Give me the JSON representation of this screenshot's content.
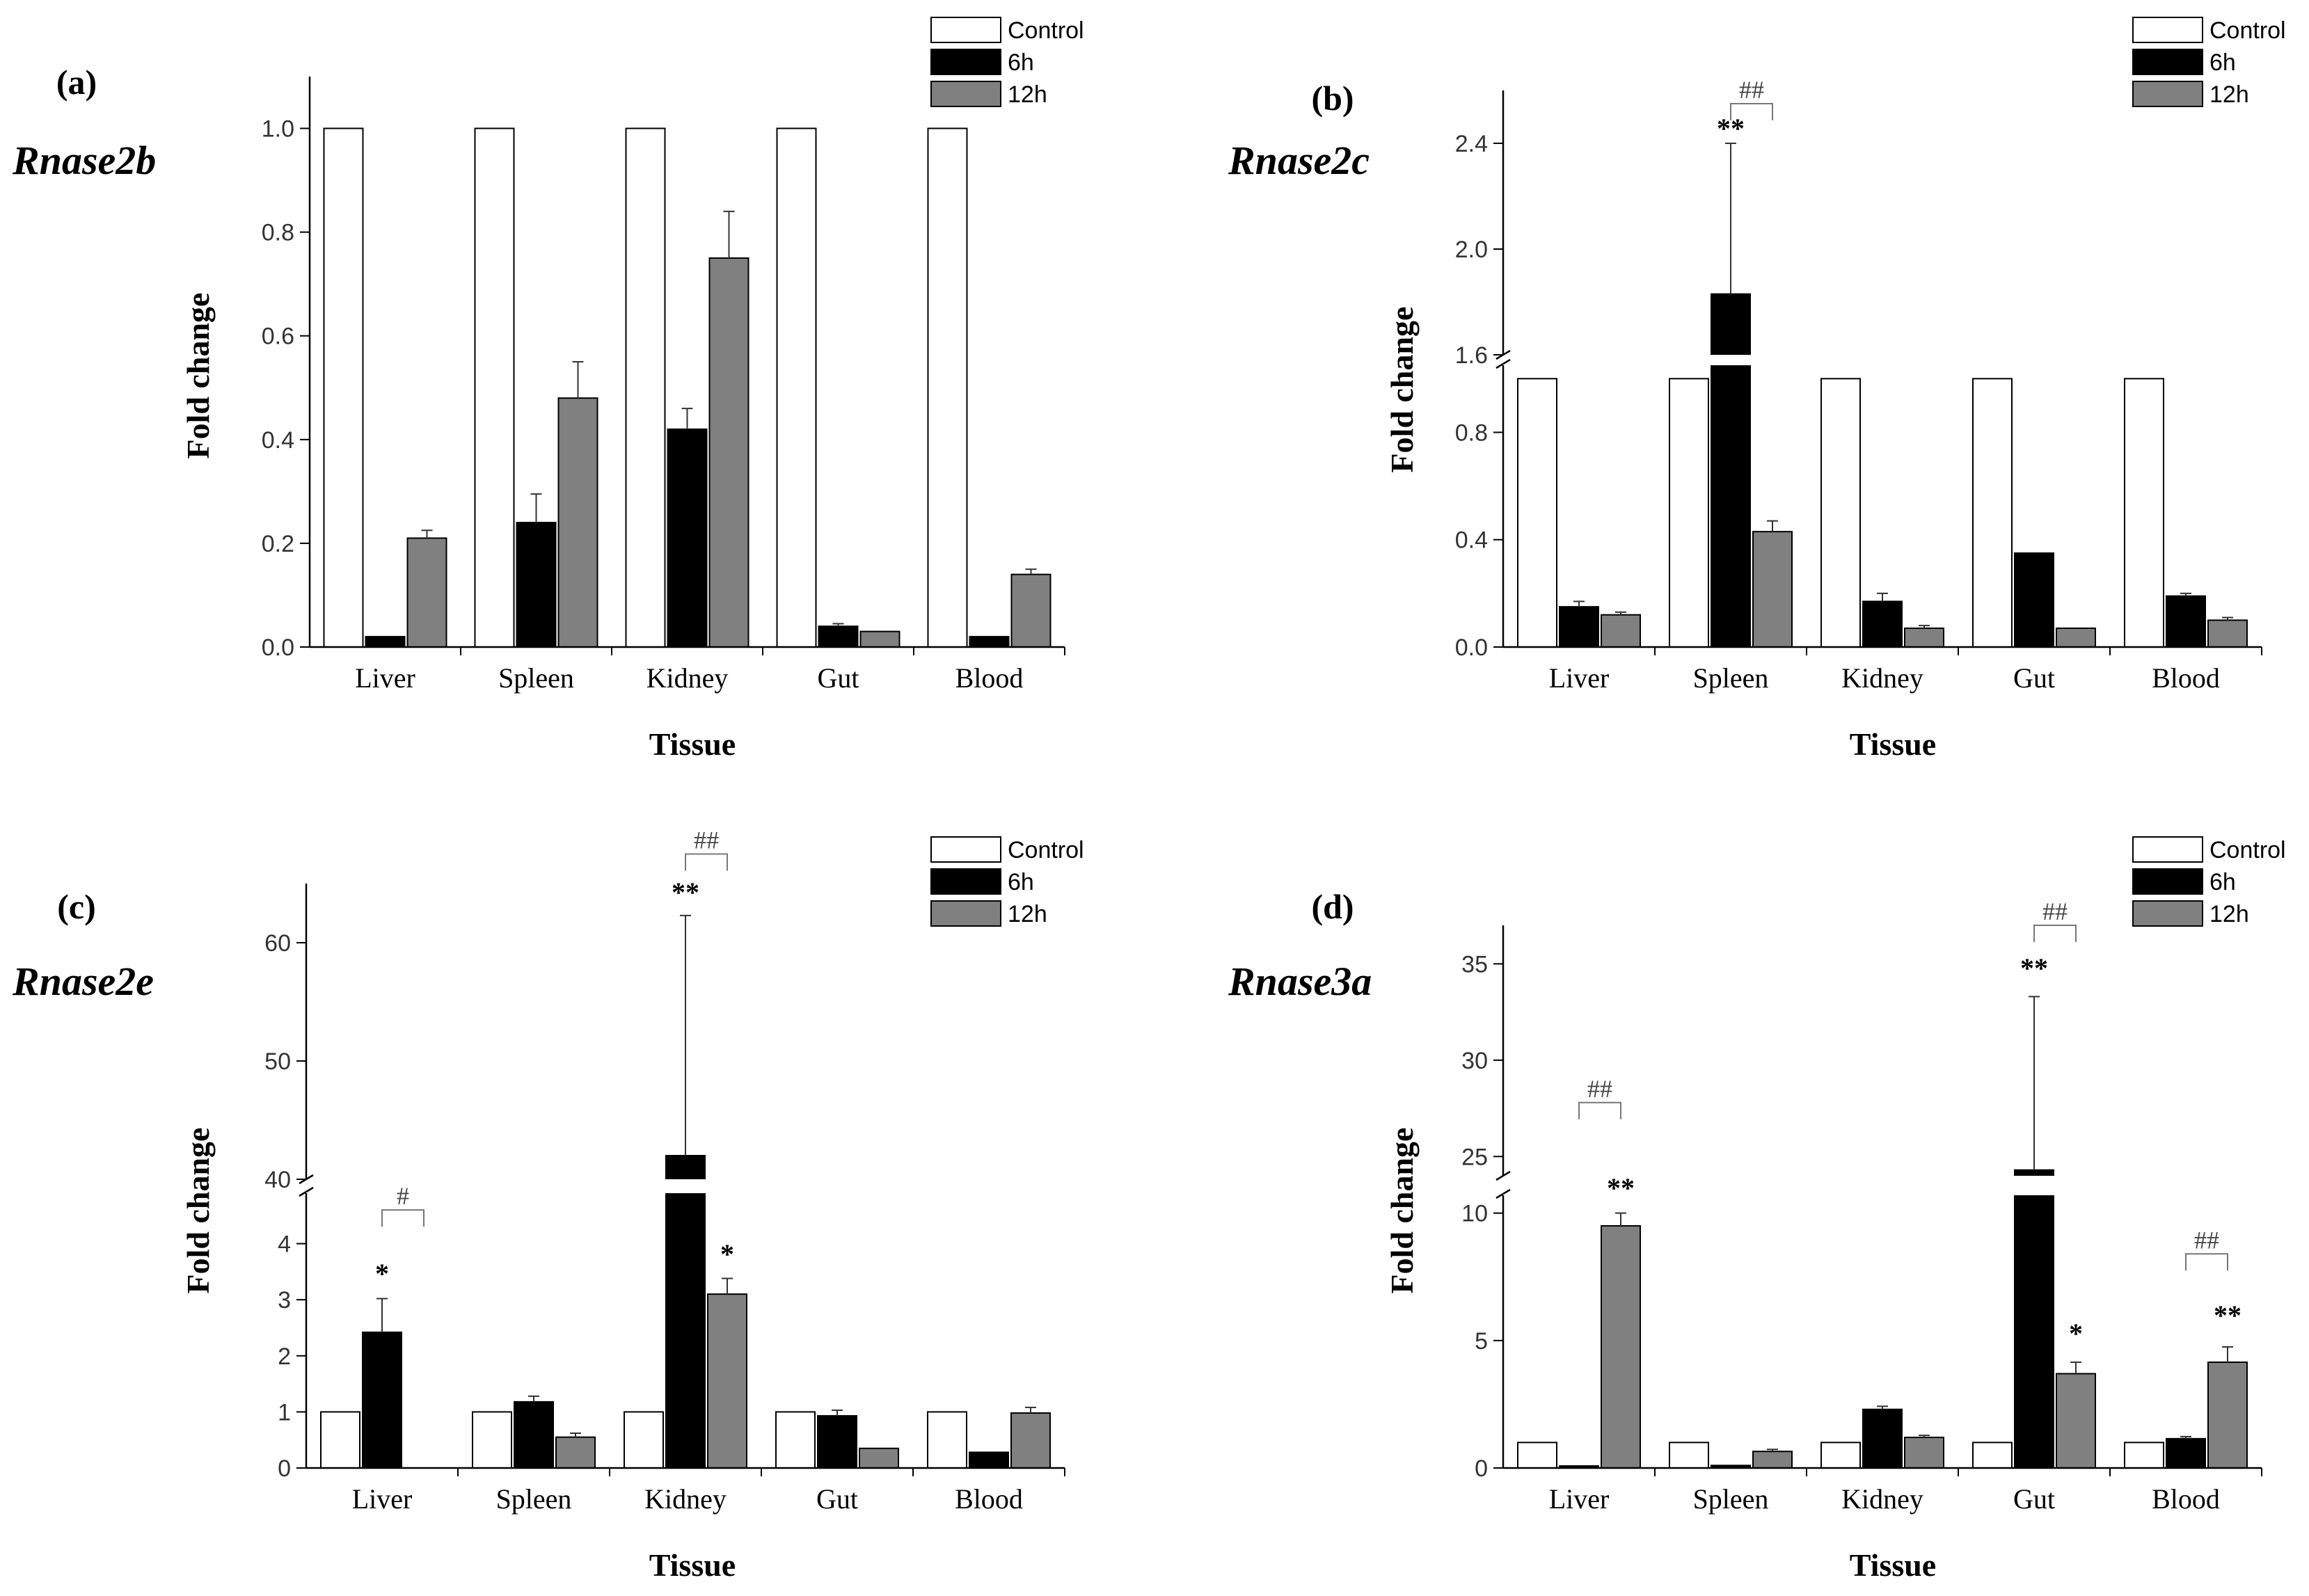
{
  "chart_data": [
    {
      "panel_label": "(a)",
      "gene": "Rnase2b",
      "type": "bar",
      "xlabel": "Tissue",
      "ylabel": "Fold change",
      "categories": [
        "Liver",
        "Spleen",
        "Kidney",
        "Gut",
        "Blood"
      ],
      "legend": [
        "Control",
        "6h",
        "12h"
      ],
      "series": [
        {
          "name": "Control",
          "values": [
            1.0,
            1.0,
            1.0,
            1.0,
            1.0
          ],
          "errors": [
            0,
            0,
            0,
            0,
            0
          ]
        },
        {
          "name": "6h",
          "values": [
            0.02,
            0.24,
            0.42,
            0.04,
            0.02
          ],
          "errors": [
            0,
            0.055,
            0.04,
            0.005,
            0
          ]
        },
        {
          "name": "12h",
          "values": [
            0.21,
            0.48,
            0.75,
            0.03,
            0.14
          ],
          "errors": [
            0.015,
            0.07,
            0.09,
            0,
            0.01
          ]
        }
      ],
      "axis_break": null,
      "yticks": [
        "0.0",
        "0.2",
        "0.4",
        "0.6",
        "0.8",
        "1.0"
      ],
      "ylim": [
        0,
        1.1
      ],
      "annotations": []
    },
    {
      "panel_label": "(b)",
      "gene": "Rnase2c",
      "type": "bar",
      "xlabel": "Tissue",
      "ylabel": "Fold change",
      "categories": [
        "Liver",
        "Spleen",
        "Kidney",
        "Gut",
        "Blood"
      ],
      "legend": [
        "Control",
        "6h",
        "12h"
      ],
      "series": [
        {
          "name": "Control",
          "values": [
            1.0,
            1.0,
            1.0,
            1.0,
            1.0
          ],
          "errors": [
            0,
            0,
            0,
            0,
            0
          ]
        },
        {
          "name": "6h",
          "values": [
            0.15,
            1.83,
            0.17,
            0.35,
            0.19
          ],
          "errors": [
            0.02,
            0.57,
            0.03,
            0,
            0.01
          ]
        },
        {
          "name": "12h",
          "values": [
            0.12,
            0.43,
            0.07,
            0.07,
            0.1
          ],
          "errors": [
            0.01,
            0.04,
            0.01,
            0,
            0.01
          ]
        }
      ],
      "axis_break": {
        "low_max": 1.05,
        "high_min": 1.6,
        "high_max": 2.6
      },
      "yticks": [
        "0.0",
        "0.4",
        "0.8",
        "1.6",
        "2.0",
        "2.4"
      ],
      "ylim": [
        0,
        2.6
      ],
      "annotations": [
        {
          "type": "star",
          "text": "**",
          "category": "Spleen",
          "series": "6h",
          "value": 2.4
        },
        {
          "type": "bracket",
          "text": "##",
          "category": "Spleen",
          "from": "6h",
          "to": "12h",
          "value": 2.55
        }
      ]
    },
    {
      "panel_label": "(c)",
      "gene": "Rnase2e",
      "type": "bar",
      "xlabel": "Tissue",
      "ylabel": "Fold change",
      "categories": [
        "Liver",
        "Spleen",
        "Kidney",
        "Gut",
        "Blood"
      ],
      "legend": [
        "Control",
        "6h",
        "12h"
      ],
      "series": [
        {
          "name": "Control",
          "values": [
            1.0,
            1.0,
            1.0,
            1.0,
            1.0
          ],
          "errors": [
            0,
            0,
            0,
            0,
            0
          ]
        },
        {
          "name": "6h",
          "values": [
            2.42,
            1.18,
            42.0,
            0.93,
            0.28
          ],
          "errors": [
            0.6,
            0.1,
            20.3,
            0.1,
            0
          ]
        },
        {
          "name": "12h",
          "values": [
            0.0,
            0.55,
            3.1,
            0.35,
            0.98
          ],
          "errors": [
            0,
            0.07,
            0.28,
            0,
            0.1
          ]
        }
      ],
      "axis_break": {
        "low_max": 4.9,
        "high_min": 40,
        "high_max": 65
      },
      "yticks": [
        "0",
        "1",
        "2",
        "3",
        "4",
        "40",
        "50",
        "60"
      ],
      "ylim": [
        0,
        65
      ],
      "annotations": [
        {
          "type": "star",
          "text": "*",
          "category": "Liver",
          "series": "6h",
          "value": 3.2
        },
        {
          "type": "bracket",
          "text": "#",
          "category": "Liver",
          "from": "6h",
          "to": "12h",
          "value": 4.6
        },
        {
          "type": "star",
          "text": "**",
          "category": "Kidney",
          "series": "6h",
          "value": 63.0
        },
        {
          "type": "bracket",
          "text": "##",
          "category": "Kidney",
          "from": "6h",
          "to": "12h",
          "value": 67.5
        },
        {
          "type": "star",
          "text": "*",
          "category": "Kidney",
          "series": "12h",
          "value": 3.55
        }
      ]
    },
    {
      "panel_label": "(d)",
      "gene": "Rnase3a",
      "type": "bar",
      "xlabel": "Tissue",
      "ylabel": "Fold change",
      "categories": [
        "Liver",
        "Spleen",
        "Kidney",
        "Gut",
        "Blood"
      ],
      "legend": [
        "Control",
        "6h",
        "12h"
      ],
      "series": [
        {
          "name": "Control",
          "values": [
            1.0,
            1.0,
            1.0,
            1.0,
            1.0
          ],
          "errors": [
            0,
            0,
            0,
            0,
            0
          ]
        },
        {
          "name": "6h",
          "values": [
            0.08,
            0.1,
            2.3,
            24.3,
            1.15
          ],
          "errors": [
            0,
            0,
            0.12,
            9.0,
            0.08
          ]
        },
        {
          "name": "12h",
          "values": [
            9.5,
            0.65,
            1.2,
            3.7,
            4.15
          ],
          "errors": [
            0.5,
            0.08,
            0.08,
            0.45,
            0.6
          ]
        }
      ],
      "axis_break": {
        "low_max": 10.7,
        "high_min": 24,
        "high_max": 37
      },
      "yticks": [
        "0",
        "5",
        "10",
        "25",
        "30",
        "35"
      ],
      "ylim": [
        0,
        37
      ],
      "annotations": [
        {
          "type": "bracket",
          "text": "##",
          "category": "Liver",
          "from": "6h",
          "to": "12h",
          "value": 27.8
        },
        {
          "type": "star",
          "text": "**",
          "category": "Liver",
          "series": "12h",
          "value": 10.4
        },
        {
          "type": "star",
          "text": "**",
          "category": "Gut",
          "series": "6h",
          "value": 34.0
        },
        {
          "type": "bracket",
          "text": "##",
          "category": "Gut",
          "from": "6h",
          "to": "12h",
          "value": 37.0
        },
        {
          "type": "star",
          "text": "*",
          "category": "Gut",
          "series": "12h",
          "value": 4.7
        },
        {
          "type": "bracket",
          "text": "##",
          "category": "Blood",
          "from": "6h",
          "to": "12h",
          "value": 8.4
        },
        {
          "type": "star",
          "text": "**",
          "category": "Blood",
          "series": "12h",
          "value": 5.4
        }
      ]
    }
  ],
  "colors": {
    "control": "#ffffff",
    "h6": "#000000",
    "h12": "#808080",
    "axis": "#000000",
    "annot": "#444444",
    "err": "#333333"
  }
}
